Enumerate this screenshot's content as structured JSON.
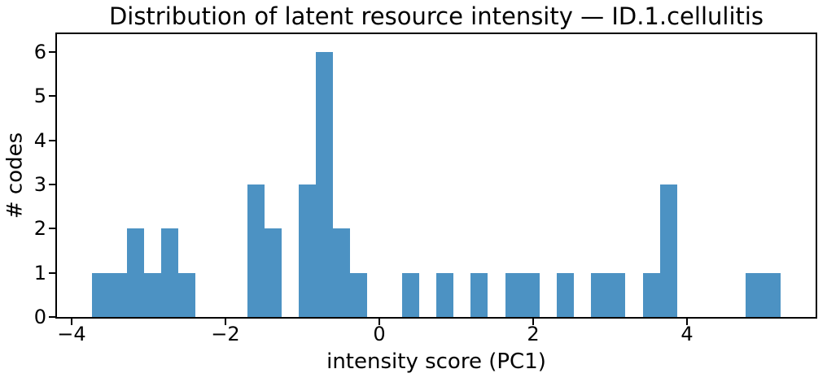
{
  "chart_data": {
    "type": "bar",
    "subtype": "histogram",
    "title": "Distribution of latent resource intensity — ID.1.cellulitis",
    "xlabel": "intensity score (PC1)",
    "ylabel": "# codes",
    "bar_color": "#4C92C3",
    "axis_color": "#000000",
    "background_color": "#ffffff",
    "grid": false,
    "legend": false,
    "xlim": [
      -4.19,
      5.67
    ],
    "ylim": [
      0,
      6.4
    ],
    "xticks": [
      -4,
      -2,
      0,
      2,
      4
    ],
    "yticks": [
      0,
      1,
      2,
      3,
      4,
      5,
      6
    ],
    "bin_start": -3.73,
    "bin_width": 0.2235,
    "counts": [
      1,
      1,
      2,
      1,
      2,
      1,
      0,
      0,
      0,
      3,
      2,
      0,
      3,
      6,
      2,
      1,
      0,
      0,
      1,
      0,
      1,
      0,
      1,
      0,
      1,
      1,
      0,
      1,
      0,
      1,
      1,
      0,
      1,
      3,
      0,
      0,
      0,
      0,
      1,
      1
    ]
  }
}
